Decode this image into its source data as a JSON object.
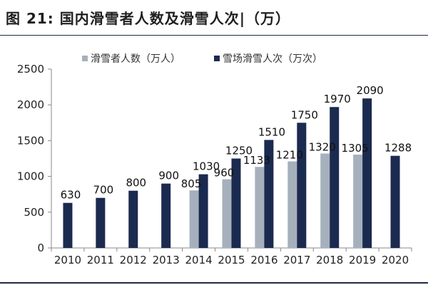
{
  "title": "图 21:  国内滑雪者人数及滑雪人次|（万）",
  "colors": {
    "series1": "#a6b0bd",
    "series2": "#1b2a4f"
  },
  "chart_data": {
    "type": "bar",
    "title": "",
    "xlabel": "",
    "ylabel": "",
    "categories": [
      "2010",
      "2011",
      "2012",
      "2013",
      "2014",
      "2015",
      "2016",
      "2017",
      "2018",
      "2019",
      "2020"
    ],
    "ylim": [
      0,
      2500
    ],
    "yticks": [
      0,
      500,
      1000,
      1500,
      2000,
      2500
    ],
    "grid": false,
    "legend_position": "top",
    "series": [
      {
        "name": "滑雪者人数（万人）",
        "values": [
          null,
          null,
          null,
          null,
          805,
          960,
          1133,
          1210,
          1320,
          1305,
          null
        ]
      },
      {
        "name": "雪场滑雪人次（万次）",
        "values": [
          630,
          700,
          800,
          900,
          1030,
          1250,
          1510,
          1750,
          1970,
          2090,
          1288
        ]
      }
    ]
  }
}
